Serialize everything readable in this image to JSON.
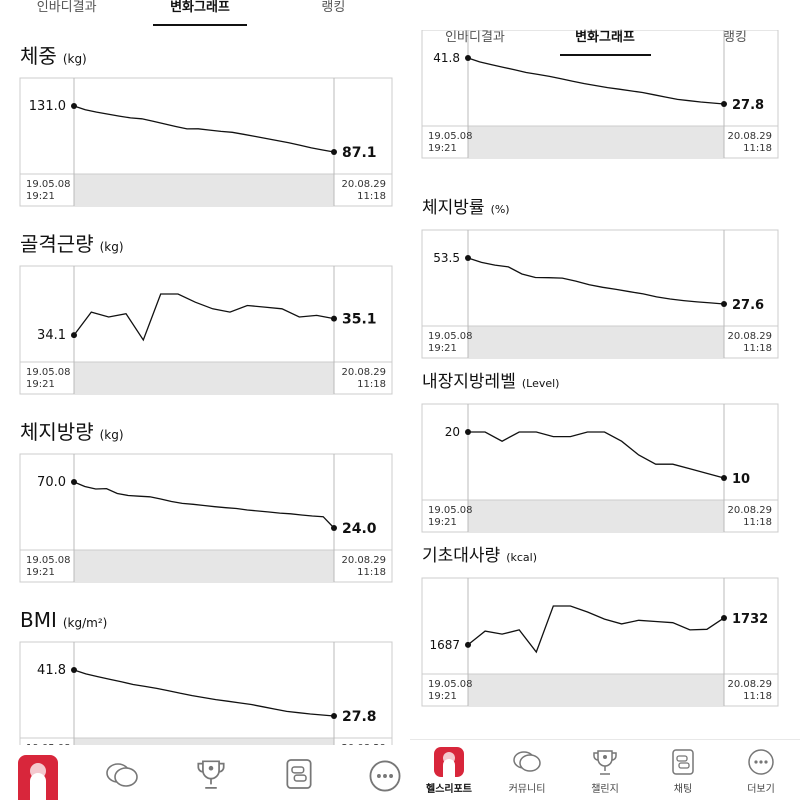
{
  "tabs": [
    {
      "label": "인바디결과",
      "active": false
    },
    {
      "label": "변화그래프",
      "active": true
    },
    {
      "label": "랭킹",
      "active": false
    }
  ],
  "chart_data": [
    {
      "type": "line",
      "title": "체중",
      "unit": "(kg)",
      "start": "19.05.08\n19:21",
      "end": "20.08.29\n11:18",
      "first_label": "131.0",
      "last_label": "87.1",
      "values": [
        131.0,
        127.5,
        125.2,
        123.3,
        121.4,
        119.6,
        118.8,
        116.4,
        113.9,
        111.4,
        109.1,
        109.2,
        108.0,
        106.8,
        105.9,
        104.0,
        102.0,
        100.0,
        98.0,
        96.0,
        93.5,
        91.0,
        89.0,
        87.1
      ]
    },
    {
      "type": "line",
      "title": "골격근량",
      "unit": "(kg)",
      "start": "19.05.08\n19:21",
      "end": "20.08.29\n11:18",
      "first_label": "34.1",
      "last_label": "35.1",
      "values": [
        34.1,
        35.5,
        35.2,
        35.4,
        33.8,
        36.6,
        36.6,
        36.1,
        35.7,
        35.5,
        35.9,
        35.8,
        35.7,
        35.2,
        35.3,
        35.1
      ]
    },
    {
      "type": "line",
      "title": "체지방량",
      "unit": "(kg)",
      "start": "19.05.08\n19:21",
      "end": "20.08.29\n11:18",
      "first_label": "70.0",
      "last_label": "24.0",
      "values": [
        70.0,
        65.5,
        63.0,
        63.4,
        58.5,
        56.5,
        55.8,
        55.2,
        53.0,
        50.5,
        48.6,
        47.7,
        46.5,
        45.3,
        44.3,
        43.5,
        42.0,
        41.0,
        40.0,
        38.9,
        38.2,
        37.0,
        36.0,
        35.3,
        24.0
      ]
    },
    {
      "type": "line",
      "title": "BMI",
      "unit": "(kg/m²)",
      "start": "19.05.08\n19:21",
      "end": "20.08.29\n11:18",
      "first_label": "41.8",
      "last_label": "27.8",
      "values": [
        41.8,
        40.6,
        39.8,
        39.0,
        38.2,
        37.4,
        36.8,
        36.2,
        35.5,
        34.7,
        34.0,
        33.4,
        32.8,
        32.3,
        31.8,
        31.3,
        30.6,
        29.9,
        29.2,
        28.8,
        28.4,
        28.1,
        27.8
      ]
    },
    {
      "type": "line",
      "title": "",
      "unit": "",
      "start": "19.05.08\n19:21",
      "end": "20.08.29\n11:18",
      "first_label": "41.8",
      "last_label": "27.8",
      "values": [
        41.8,
        40.6,
        39.8,
        39.0,
        38.2,
        37.4,
        36.8,
        36.2,
        35.5,
        34.7,
        34.0,
        33.4,
        32.8,
        32.3,
        31.8,
        31.3,
        30.6,
        29.9,
        29.2,
        28.8,
        28.4,
        28.1,
        27.8
      ]
    },
    {
      "type": "line",
      "title": "체지방률",
      "unit": "(%)",
      "start": "19.05.08\n19:21",
      "end": "20.08.29\n11:18",
      "first_label": "53.5",
      "last_label": "27.6",
      "values": [
        53.5,
        51.0,
        49.5,
        48.5,
        44.5,
        42.5,
        42.4,
        42.2,
        40.5,
        38.4,
        37.0,
        35.8,
        34.5,
        33.3,
        31.6,
        30.4,
        29.5,
        28.8,
        28.2,
        27.6
      ]
    },
    {
      "type": "line",
      "title": "내장지방레벨",
      "unit": "(Level)",
      "start": "19.05.08\n19:21",
      "end": "20.08.29\n11:18",
      "first_label": "20",
      "last_label": "10",
      "values": [
        20,
        20,
        18,
        20,
        20,
        19,
        19,
        20,
        20,
        18,
        15,
        13,
        13,
        12,
        11,
        10
      ]
    },
    {
      "type": "line",
      "title": "기초대사량",
      "unit": "(kcal)",
      "start": "19.05.08\n19:21",
      "end": "20.08.29\n11:18",
      "first_label": "1687",
      "last_label": "1732",
      "values": [
        1687,
        1710,
        1705,
        1712,
        1675,
        1752,
        1752,
        1742,
        1730,
        1722,
        1728,
        1726,
        1724,
        1712,
        1713,
        1732
      ]
    }
  ],
  "nav": [
    {
      "label": "헬스리포트",
      "icon": "health-report-icon",
      "active": true
    },
    {
      "label": "커뮤니티",
      "icon": "chat-bubbles-icon",
      "active": false
    },
    {
      "label": "챌린지",
      "icon": "trophy-icon",
      "active": false
    },
    {
      "label": "채팅",
      "icon": "chat-icon",
      "active": false
    },
    {
      "label": "더보기",
      "icon": "more-icon",
      "active": false
    }
  ]
}
